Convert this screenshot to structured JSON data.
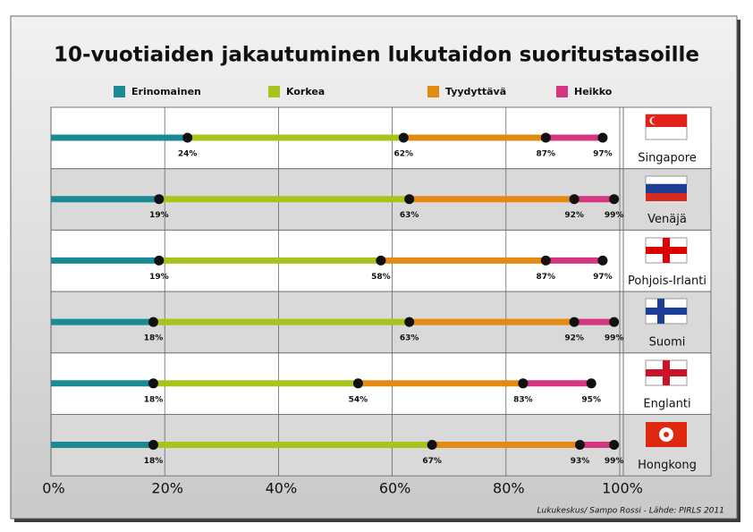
{
  "chart_data": {
    "type": "bar",
    "title": "10-vuotiaiden jakautuminen lukutaidon suoritustasoille",
    "categories": [
      "Singapore",
      "Venäjä",
      "Pohjois-Irlanti",
      "Suomi",
      "Englanti",
      "Hongkong"
    ],
    "series": [
      {
        "name": "Erinomainen",
        "color": "#1a8a93",
        "values": [
          24,
          19,
          19,
          18,
          18,
          18
        ],
        "value_labels": [
          "24%",
          "19%",
          "19%",
          "18%",
          "18%",
          "18%"
        ]
      },
      {
        "name": "Korkea",
        "color": "#a9c31b",
        "values": [
          62,
          63,
          58,
          63,
          54,
          67
        ],
        "value_labels": [
          "62%",
          "63%",
          "58%",
          "63%",
          "54%",
          "67%"
        ]
      },
      {
        "name": "Tyydyttävä",
        "color": "#e38a12",
        "values": [
          87,
          92,
          87,
          92,
          83,
          93
        ],
        "value_labels": [
          "87%",
          "92%",
          "87%",
          "92%",
          "83%",
          "93%"
        ]
      },
      {
        "name": "Heikko",
        "color": "#d6357f",
        "values": [
          97,
          99,
          97,
          99,
          95,
          99
        ],
        "value_labels": [
          "97%",
          "99%",
          "97%",
          "99%",
          "95%",
          "99%"
        ]
      }
    ],
    "xlim": [
      0,
      100
    ],
    "xticks": [
      {
        "value": 0,
        "label": "0%"
      },
      {
        "value": 20,
        "label": "20%"
      },
      {
        "value": 40,
        "label": "40%"
      },
      {
        "value": 60,
        "label": "60%"
      },
      {
        "value": 80,
        "label": "80%"
      },
      {
        "value": 100,
        "label": "100%"
      }
    ],
    "grid": true,
    "source": "Lukukeskus/ Sampo Rossi - Lähde: PIRLS 2011"
  }
}
